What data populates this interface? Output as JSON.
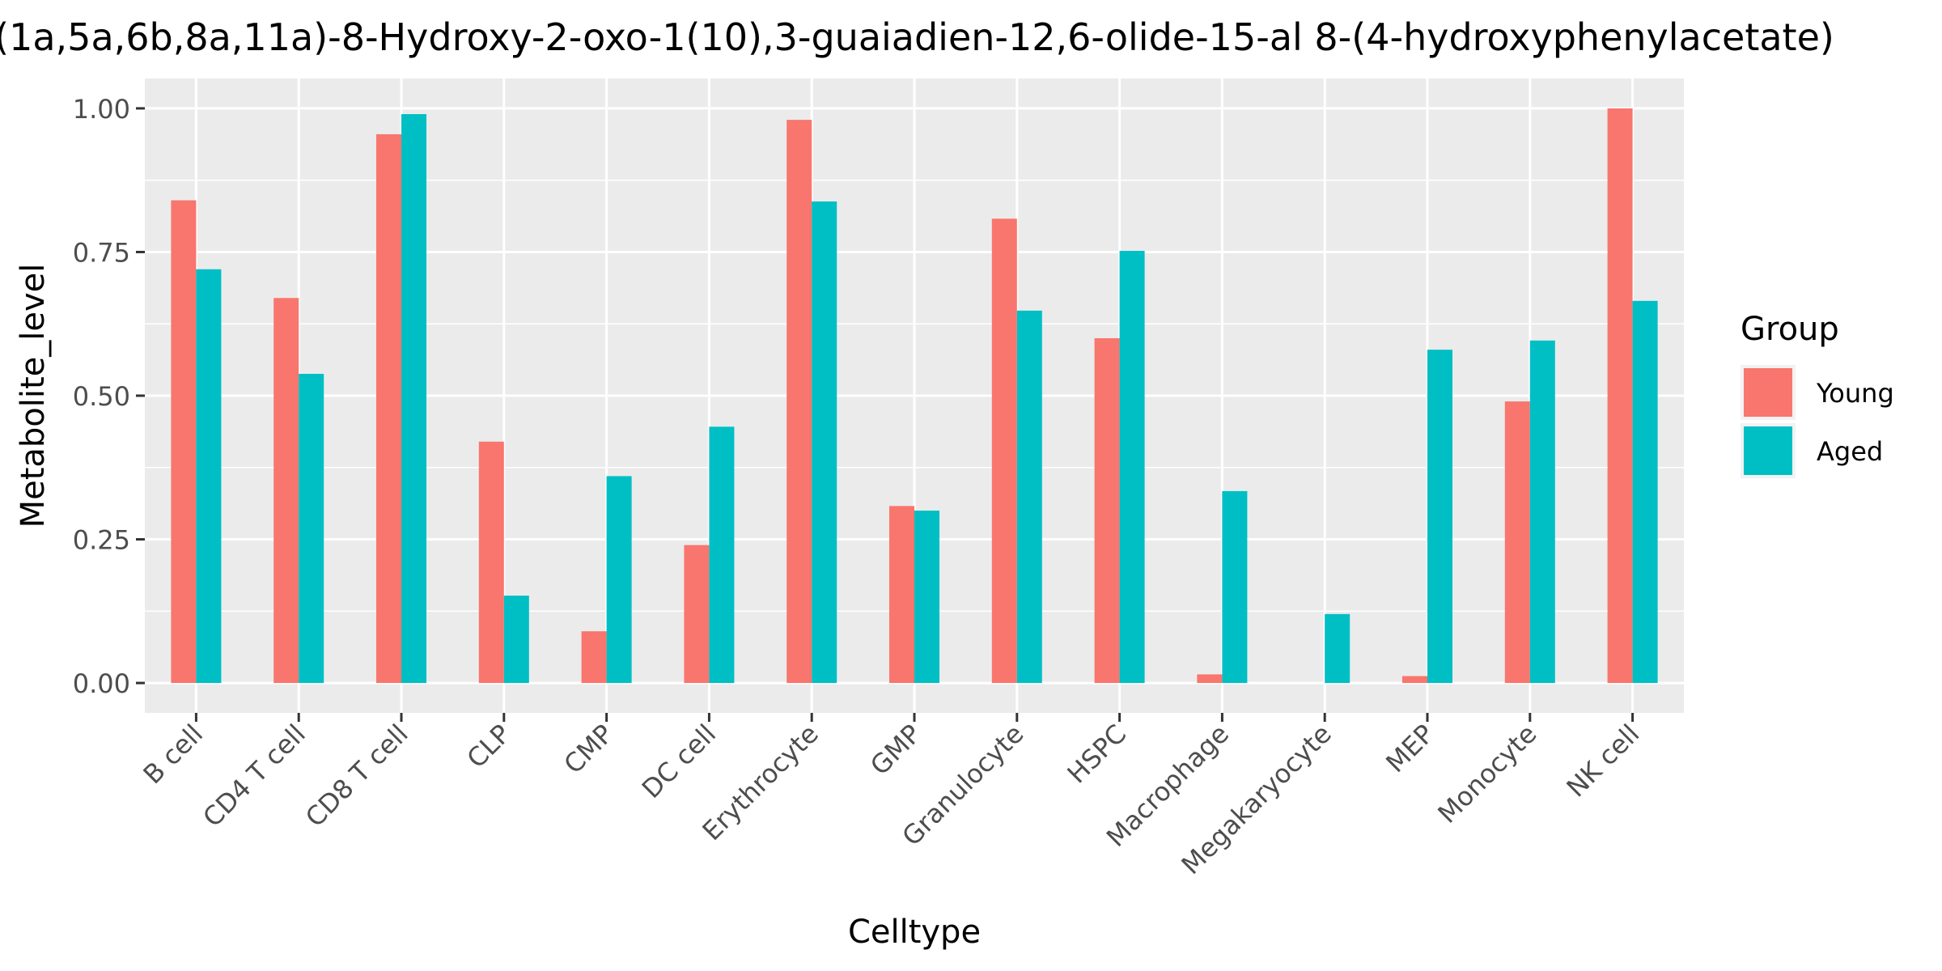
{
  "chart_data": {
    "type": "bar",
    "title": "(1a,5a,6b,8a,11a)-8-Hydroxy-2-oxo-1(10),3-guaiadien-12,6-olide-15-al 8-(4-hydroxyphenylacetate)",
    "xlabel": "Celltype",
    "ylabel": "Metabolite_level",
    "categories": [
      "B cell",
      "CD4 T cell",
      "CD8 T cell",
      "CLP",
      "CMP",
      "DC cell",
      "Erythrocyte",
      "GMP",
      "Granulocyte",
      "HSPC",
      "Macrophage",
      "Megakaryocyte",
      "MEP",
      "Monocyte",
      "NK cell"
    ],
    "series": [
      {
        "name": "Young",
        "color": "#F8766D",
        "values": [
          0.84,
          0.67,
          0.955,
          0.42,
          0.09,
          0.24,
          0.98,
          0.308,
          0.808,
          0.6,
          0.015,
          0.0,
          0.012,
          0.49,
          1.0
        ]
      },
      {
        "name": "Aged",
        "color": "#00BFC4",
        "values": [
          0.72,
          0.538,
          0.99,
          0.152,
          0.36,
          0.446,
          0.838,
          0.3,
          0.648,
          0.752,
          0.334,
          0.12,
          0.58,
          0.596,
          0.665
        ]
      }
    ],
    "ylim": [
      -0.052,
      1.052
    ],
    "yticks": [
      0.0,
      0.25,
      0.5,
      0.75,
      1.0
    ],
    "ytick_labels": [
      "0.00",
      "0.25",
      "0.50",
      "0.75",
      "1.00"
    ],
    "grid": true,
    "legend": {
      "title": "Group",
      "position": "right"
    },
    "panel_background": "#EBEBEB"
  }
}
